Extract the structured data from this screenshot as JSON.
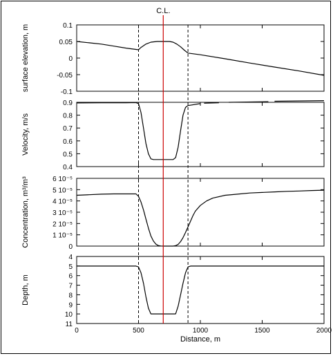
{
  "chart_data": {
    "type": "line",
    "centerline": {
      "x": 700,
      "label": "C.L.",
      "color": "#cc0000"
    },
    "channel_edges": [
      500,
      900
    ],
    "xlabel": "Distance, m",
    "xlim": [
      0,
      2000
    ],
    "xticks": [
      0,
      500,
      1000,
      1500,
      2000
    ],
    "line_color": "#000000",
    "panels": [
      {
        "ylabel": "surface elevation, m",
        "ylim": [
          -0.1,
          0.1
        ],
        "yticks": [
          -0.1,
          -0.05,
          0,
          0.05,
          0.1
        ],
        "ytick_labels": [
          "-0.1",
          "-0.05",
          "0",
          "0.05",
          "0.1"
        ],
        "inverted": false,
        "series": [
          {
            "x": [
              0,
              100,
              200,
              300,
              400,
              480,
              500,
              520,
              560,
              600,
              650,
              700,
              750,
              780,
              810,
              840,
              870,
              900,
              1000,
              1200,
              1400,
              1600,
              1800,
              2000
            ],
            "y": [
              0.05,
              0.046,
              0.042,
              0.036,
              0.03,
              0.026,
              0.025,
              0.032,
              0.042,
              0.048,
              0.05,
              0.05,
              0.05,
              0.048,
              0.042,
              0.034,
              0.024,
              0.015,
              0.01,
              -0.002,
              -0.015,
              -0.027,
              -0.039,
              -0.052
            ]
          }
        ]
      },
      {
        "ylabel": "Velocity, m/s",
        "ylim": [
          0.4,
          0.9
        ],
        "yticks": [
          0.4,
          0.5,
          0.6,
          0.7,
          0.8,
          0.9
        ],
        "ytick_labels": [
          "0.4",
          "0.5",
          "0.6",
          "0.7",
          "0.8",
          "0.9"
        ],
        "inverted": false,
        "series": [
          {
            "x": [
              0,
              200,
              400,
              480,
              500,
              520,
              540,
              560,
              580,
              600,
              620,
              700,
              780,
              800,
              820,
              840,
              860,
              880,
              900,
              1000
            ],
            "y": [
              0.895,
              0.896,
              0.897,
              0.898,
              0.89,
              0.82,
              0.7,
              0.58,
              0.5,
              0.46,
              0.455,
              0.455,
              0.455,
              0.47,
              0.55,
              0.68,
              0.8,
              0.86,
              0.875,
              0.89
            ]
          },
          {
            "x": [
              1030,
              1150
            ],
            "y": [
              0.893,
              0.897
            ]
          },
          {
            "x": [
              1230,
              1550
            ],
            "y": [
              0.9,
              0.905
            ]
          },
          {
            "x": [
              1600,
              2000
            ],
            "y": [
              0.908,
              0.913
            ]
          }
        ]
      },
      {
        "ylabel": "Concentration, m³/m³",
        "ylim": [
          0,
          6e-05
        ],
        "yticks": [
          0,
          1e-05,
          2e-05,
          3e-05,
          4e-05,
          5e-05,
          6e-05
        ],
        "ytick_labels": [
          "0",
          "1 10⁻⁵",
          "2 10⁻⁵",
          "3 10⁻⁵",
          "4 10⁻⁵",
          "5 10⁻⁵",
          "6 10⁻⁵"
        ],
        "inverted": false,
        "series": [
          {
            "x": [
              0,
              100,
              200,
              300,
              400,
              480,
              500,
              520,
              540,
              560,
              580,
              600,
              620,
              640,
              660,
              680,
              700,
              720,
              740,
              760,
              780,
              800,
              820,
              840,
              860,
              880,
              900,
              920,
              940,
              960,
              1000,
              1050,
              1100,
              1200,
              1300,
              1400,
              1500,
              1600,
              1700,
              1800,
              1900,
              2000
            ],
            "y": [
              4.5e-05,
              4.55e-05,
              4.6e-05,
              4.62e-05,
              4.62e-05,
              4.62e-05,
              4.4e-05,
              3.9e-05,
              3.2e-05,
              2.4e-05,
              1.6e-05,
              9e-06,
              4.5e-06,
              1.8e-06,
              5e-07,
              1e-07,
              0,
              0,
              0,
              0,
              0,
              4e-07,
              1.5e-06,
              4e-06,
              7.5e-06,
              1.2e-05,
              1.7e-05,
              2.2e-05,
              2.7e-05,
              3.1e-05,
              3.6e-05,
              4e-05,
              4.25e-05,
              4.5e-05,
              4.6e-05,
              4.7e-05,
              4.75e-05,
              4.8e-05,
              4.85e-05,
              4.88e-05,
              4.92e-05,
              4.95e-05
            ]
          }
        ]
      },
      {
        "ylabel": "Depth, m",
        "ylim": [
          4,
          11
        ],
        "yticks": [
          4,
          5,
          6,
          7,
          8,
          9,
          10,
          11
        ],
        "ytick_labels": [
          "4",
          "5",
          "6",
          "7",
          "8",
          "9",
          "10",
          "11"
        ],
        "inverted": true,
        "series": [
          {
            "x": [
              0,
              480,
              500,
              520,
              540,
              560,
              580,
              600,
              800,
              820,
              840,
              860,
              880,
              900,
              920,
              2000
            ],
            "y": [
              5,
              5,
              5.1,
              5.7,
              6.8,
              8.2,
              9.4,
              10,
              10,
              9.2,
              8,
              6.8,
              5.7,
              5.1,
              5,
              5
            ]
          }
        ]
      }
    ]
  }
}
